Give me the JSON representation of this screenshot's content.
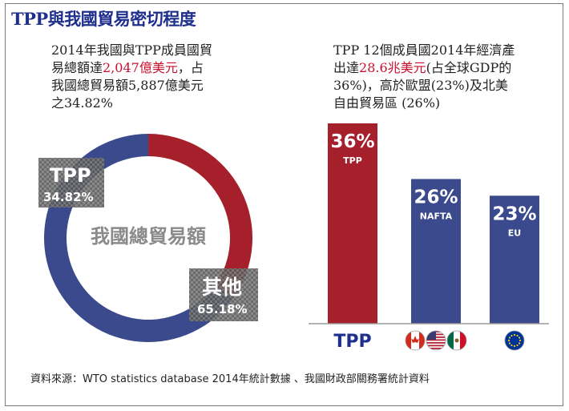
{
  "title": "TPP與我國貿易密切程度",
  "left_text": {
    "line1": "2014年我國與TPP成員國貿",
    "line2_pre": "易總額達",
    "line2_highlight": "2,047億美元",
    "line2_post": "，占",
    "line3": "我國總貿易額5,887億美元",
    "line4": "之34.82%"
  },
  "right_text": {
    "line1": "TPP 12個成員國2014年經濟產",
    "line2_pre": "出達",
    "line2_highlight": "28.6兆美元",
    "line2_post": "(占全球GDP的",
    "line3": "36%)，高於歐盟(23%)及北美",
    "line4": "自由貿易區 (26%)"
  },
  "source": "資料來源：WTO statistics database 2014年統計數據 、我國財政部關務署統計資料",
  "chart_data": [
    {
      "type": "pie",
      "center_label": "我國總貿易額",
      "slices": [
        {
          "label": "TPP",
          "value": 34.82,
          "value_label": "34.82%",
          "color": "#a6202c"
        },
        {
          "label": "其他",
          "value": 65.18,
          "value_label": "65.18%",
          "color": "#3a4a8c"
        }
      ]
    },
    {
      "type": "bar",
      "categories": [
        "TPP",
        "NAFTA",
        "EU"
      ],
      "values": [
        36,
        26,
        23
      ],
      "value_labels": [
        "36%",
        "26%",
        "23%"
      ],
      "colors": [
        "#a6202c",
        "#3a4a8c",
        "#3a4a8c"
      ],
      "axis_labels": [
        "TPP",
        "",
        ""
      ],
      "axis_icons": [
        [],
        [
          "canada-flag-icon",
          "usa-flag-icon",
          "mexico-flag-icon"
        ],
        [
          "eu-flag-icon"
        ]
      ]
    }
  ]
}
